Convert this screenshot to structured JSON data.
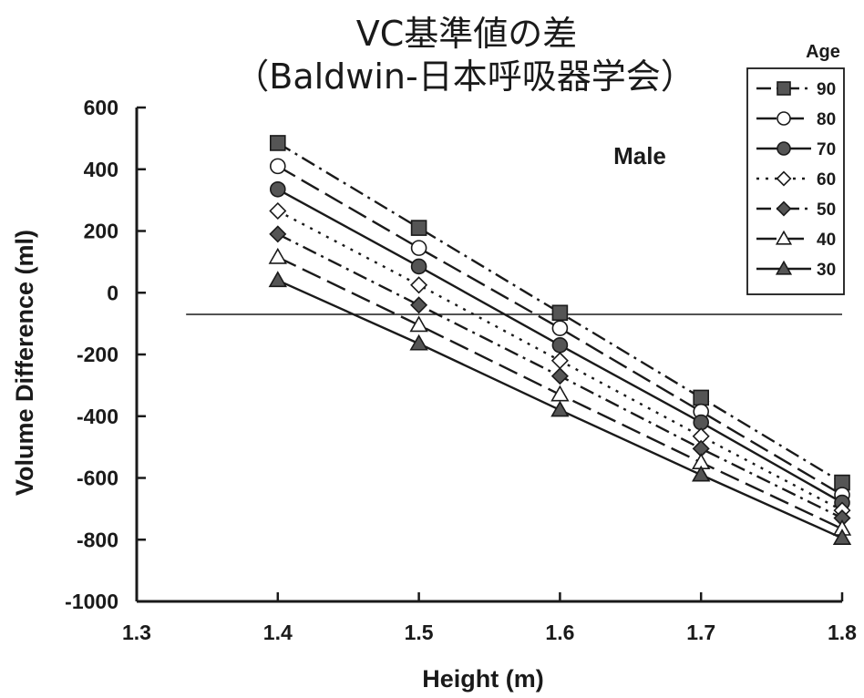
{
  "chart_data": {
    "type": "line",
    "title": "VC基準値の差",
    "subtitle": "（Baldwin-日本呼吸器学会）",
    "xlabel": "Height (m)",
    "ylabel": "Volume Difference (ml)",
    "xlim": [
      1.3,
      1.8
    ],
    "ylim": [
      -1000,
      600
    ],
    "x_ticks": [
      "1.3",
      "1.4",
      "1.5",
      "1.6",
      "1.7",
      "1.8"
    ],
    "y_ticks": [
      "600",
      "400",
      "200",
      "0",
      "-200",
      "-400",
      "-600",
      "-800",
      "-1000"
    ],
    "x": [
      1.4,
      1.5,
      1.6,
      1.7,
      1.8
    ],
    "grid": false,
    "legend": {
      "title": "Age",
      "position": "top-right"
    },
    "annotation": "Male",
    "reference_line": {
      "y": -70
    },
    "series": [
      {
        "name": "90",
        "marker": "square-filled",
        "dash": "dashdot",
        "values": [
          485,
          210,
          -65,
          -340,
          -615
        ]
      },
      {
        "name": "80",
        "marker": "circle-open",
        "dash": "longdash",
        "values": [
          410,
          145,
          -115,
          -385,
          -655
        ]
      },
      {
        "name": "70",
        "marker": "circle-filled",
        "dash": "solid",
        "values": [
          335,
          85,
          -170,
          -420,
          -680
        ]
      },
      {
        "name": "60",
        "marker": "diamond-open",
        "dash": "dotted",
        "values": [
          265,
          25,
          -220,
          -465,
          -705
        ]
      },
      {
        "name": "50",
        "marker": "diamond-filled",
        "dash": "dashdot",
        "values": [
          190,
          -40,
          -270,
          -505,
          -730
        ]
      },
      {
        "name": "40",
        "marker": "triangle-open",
        "dash": "longdash",
        "values": [
          115,
          -105,
          -330,
          -550,
          -765
        ]
      },
      {
        "name": "30",
        "marker": "triangle-filled",
        "dash": "solid",
        "values": [
          40,
          -165,
          -380,
          -590,
          -795
        ]
      }
    ]
  }
}
